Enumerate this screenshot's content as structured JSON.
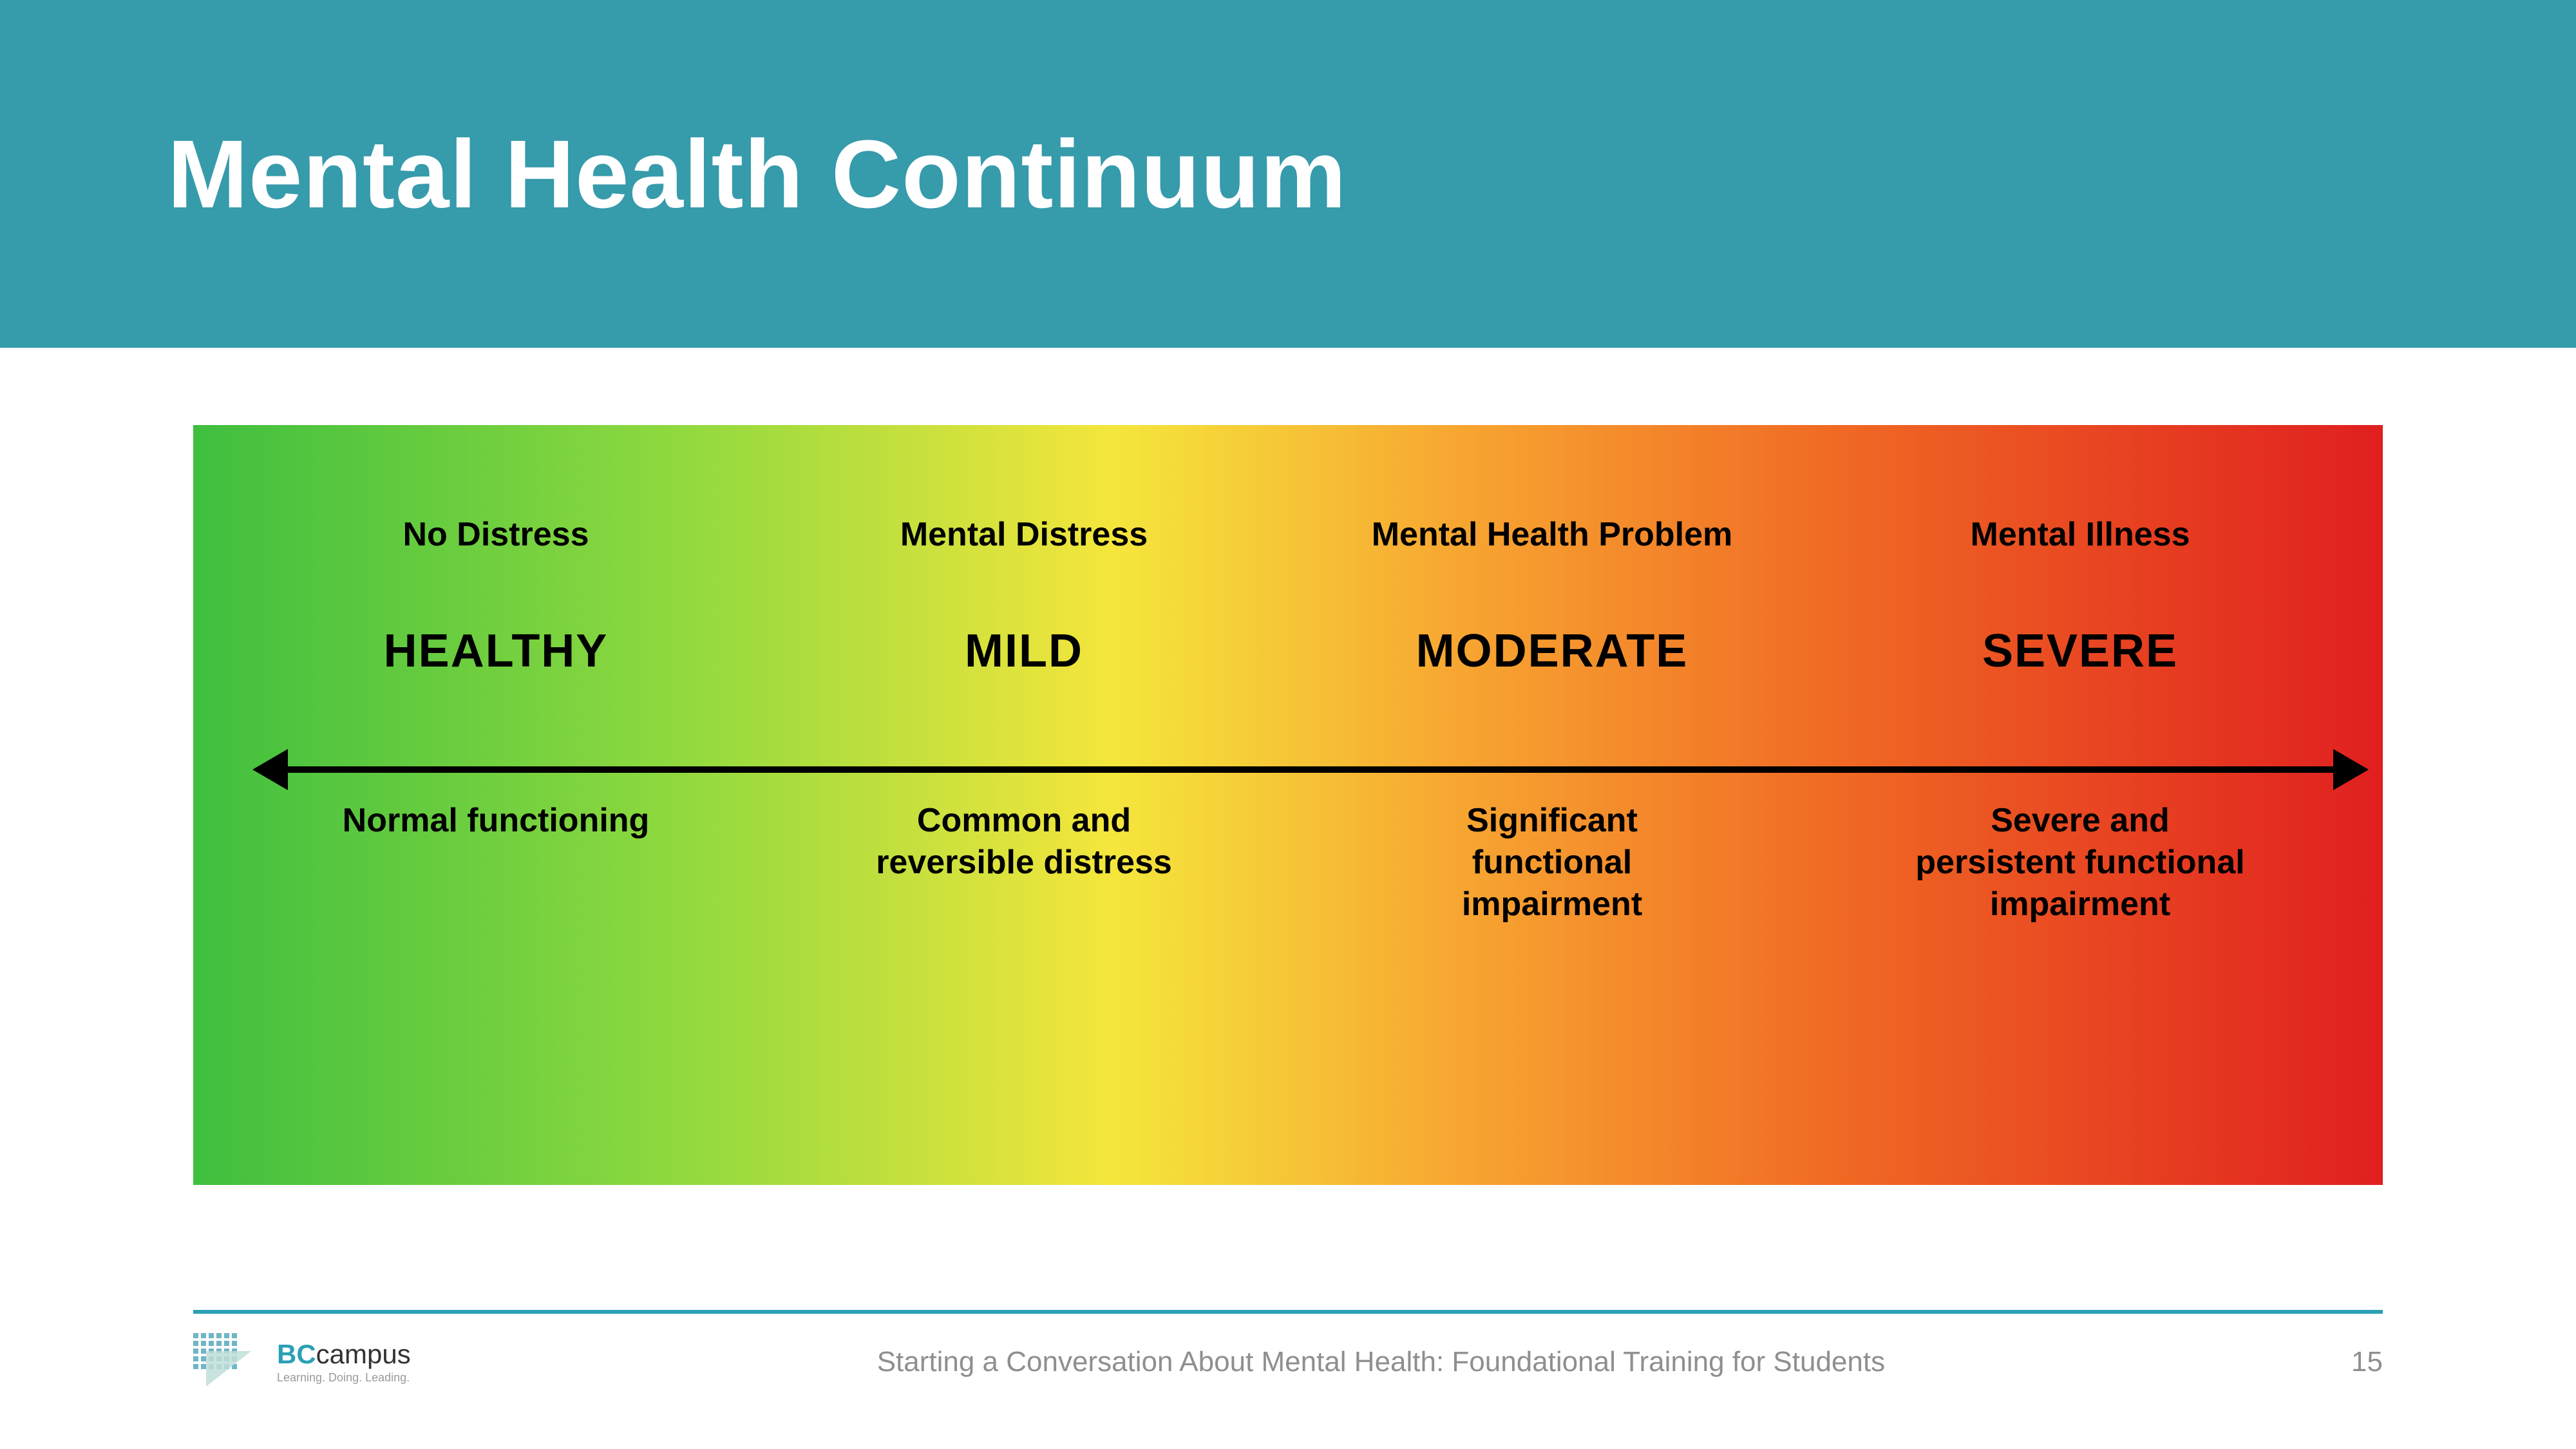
{
  "header": {
    "title": "Mental Health Continuum"
  },
  "continuum": {
    "type": "infographic",
    "gradient_colors": [
      "#3fbf3f",
      "#8fd93f",
      "#f5e63c",
      "#f7a531",
      "#f06a24",
      "#e01f1f"
    ],
    "gradient_stops": [
      0,
      22,
      42,
      58,
      75,
      100
    ],
    "text_color": "#000000",
    "top_label_fontsize": 52,
    "level_fontsize": 72,
    "desc_fontsize": 52,
    "arrow_color": "#000000",
    "arrow_thickness": 10,
    "stages": [
      {
        "top": "No Distress",
        "level": "HEALTHY",
        "desc": "Normal functioning"
      },
      {
        "top": "Mental Distress",
        "level": "MILD",
        "desc": "Common and reversible distress"
      },
      {
        "top": "Mental Health Problem",
        "level": "MODERATE",
        "desc": "Significant functional impairment"
      },
      {
        "top": "Mental Illness",
        "level": "SEVERE",
        "desc": "Severe and persistent functional impairment"
      }
    ]
  },
  "footer": {
    "rule_color": "#2aa0b4",
    "logo_prefix": "BC",
    "logo_suffix": "campus",
    "logo_tagline": "Learning. Doing. Leading.",
    "title": "Starting a Conversation About Mental Health: Foundational Training for Students",
    "page": "15"
  },
  "colors": {
    "header_bg": "#369bab",
    "page_bg": "#ffffff",
    "footer_text": "#8f8f8f"
  }
}
